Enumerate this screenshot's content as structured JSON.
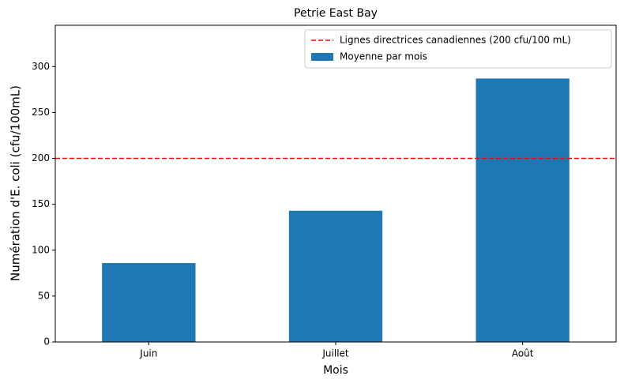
{
  "chart_data": {
    "type": "bar",
    "title": "Petrie East Bay",
    "x_label": "Mois",
    "y_label": "Numération d'E. coli (cfu/100mL)",
    "categories": [
      "Juin",
      "Juillet",
      "Août"
    ],
    "series": [
      {
        "name": "Moyenne par mois",
        "color": "#1f77b4",
        "values": [
          86,
          143,
          287
        ]
      }
    ],
    "reference_line": {
      "value": 200,
      "name": "Lignes directrices canadiennes (200 cfu/100 mL)",
      "color": "#ff0000"
    },
    "ylim": [
      0,
      345
    ],
    "yticks": [
      0,
      50,
      100,
      150,
      200,
      250,
      300
    ],
    "legend": "upper right"
  }
}
